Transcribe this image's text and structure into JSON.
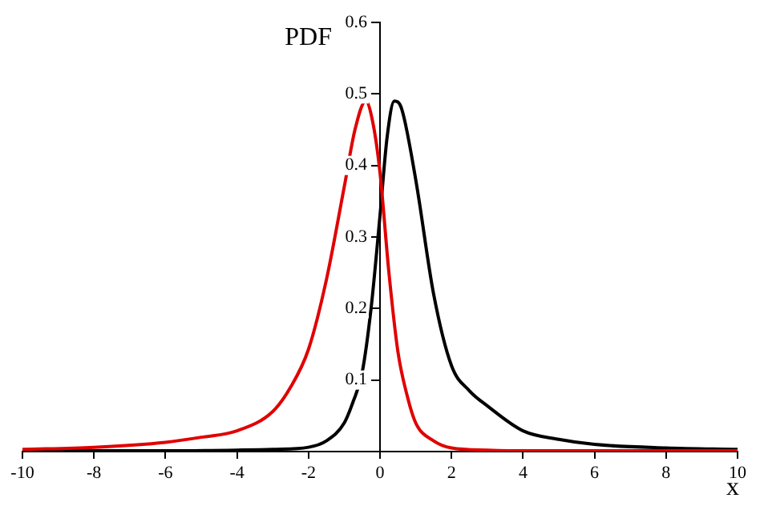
{
  "chart_data": {
    "type": "line",
    "xlabel": "x",
    "ylabel": "PDF",
    "xlim": [
      -10,
      10
    ],
    "ylim": [
      0,
      0.6
    ],
    "xticks": [
      -10,
      -8,
      -6,
      -4,
      -2,
      0,
      2,
      4,
      6,
      8,
      10
    ],
    "yticks": [
      0.1,
      0.2,
      0.3,
      0.4,
      0.5,
      0.6
    ],
    "grid": false,
    "legend": false,
    "marker": "none",
    "line_style": "solid",
    "series": [
      {
        "color": "#e00000",
        "x": [
          -10,
          -8,
          -6,
          -5,
          -4,
          -3,
          -2.5,
          -2,
          -1.5,
          -1,
          -0.7,
          -0.4,
          -0.2,
          0,
          0.25,
          0.5,
          0.75,
          1,
          1.5,
          2,
          3,
          4,
          6,
          8,
          10
        ],
        "values": [
          0.003,
          0.006,
          0.013,
          0.02,
          0.029,
          0.056,
          0.09,
          0.143,
          0.24,
          0.37,
          0.45,
          0.49,
          0.46,
          0.39,
          0.25,
          0.14,
          0.08,
          0.04,
          0.015,
          0.005,
          0.002,
          0.001,
          0.001,
          0.001,
          0.001
        ]
      },
      {
        "color": "#000000",
        "x": [
          -10,
          -8,
          -6,
          -4,
          -3,
          -2,
          -1.5,
          -1,
          -0.75,
          -0.5,
          -0.25,
          0,
          0.2,
          0.4,
          0.6,
          1,
          1.5,
          2,
          2.5,
          3,
          4,
          5,
          6,
          8,
          10
        ],
        "values": [
          0.001,
          0.001,
          0.001,
          0.002,
          0.003,
          0.006,
          0.015,
          0.04,
          0.07,
          0.11,
          0.2,
          0.33,
          0.44,
          0.49,
          0.48,
          0.38,
          0.22,
          0.12,
          0.085,
          0.064,
          0.029,
          0.017,
          0.01,
          0.005,
          0.003
        ]
      }
    ]
  }
}
